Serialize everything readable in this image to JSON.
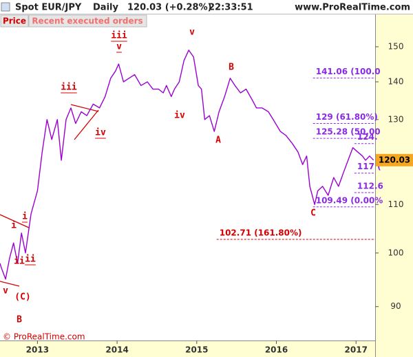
{
  "header": {
    "symbol": "Spot EUR/JPY",
    "period": "Daily",
    "quote": "120.03 (+0.28%)",
    "time": "22:33:51",
    "site": "www.ProRealTime.com",
    "price_button": "Price",
    "orders_button": "Recent executed orders",
    "copyright": "© ProRealTime.com"
  },
  "chart_data": {
    "type": "line",
    "log_scale": true,
    "grid": false,
    "xlim": [
      2012.53,
      2017.24
    ],
    "xticks": [
      2013,
      2014,
      2015,
      2016,
      2017
    ],
    "ylim": [
      84.2,
      160.05
    ],
    "yticks": [
      90,
      100,
      110,
      130,
      140,
      150
    ],
    "last_price": {
      "value": 120.03,
      "label": "120.03"
    },
    "series": [
      {
        "color": "#9a00d0",
        "x": [
          2012.53,
          2012.55,
          2012.6,
          2012.65,
          2012.7,
          2012.75,
          2012.8,
          2012.85,
          2012.92,
          2013,
          2013.06,
          2013.12,
          2013.18,
          2013.25,
          2013.3,
          2013.36,
          2013.42,
          2013.48,
          2013.55,
          2013.62,
          2013.7,
          2013.78,
          2013.85,
          2013.92,
          2013.98,
          2014.02,
          2014.08,
          2014.15,
          2014.22,
          2014.3,
          2014.38,
          2014.45,
          2014.52,
          2014.58,
          2014.62,
          2014.68,
          2014.72,
          2014.78,
          2014.84,
          2014.9,
          2014.96,
          2015.02,
          2015.06,
          2015.1,
          2015.16,
          2015.22,
          2015.28,
          2015.35,
          2015.42,
          2015.48,
          2015.55,
          2015.62,
          2015.7,
          2015.75,
          2015.82,
          2015.9,
          2015.96,
          2016.05,
          2016.12,
          2016.2,
          2016.27,
          2016.33,
          2016.38,
          2016.42,
          2016.48,
          2016.52,
          2016.58,
          2016.65,
          2016.72,
          2016.78,
          2016.84,
          2016.9,
          2016.96,
          2017.02,
          2017.08,
          2017.12,
          2017.17,
          2017.22
        ],
        "values": [
          98,
          97,
          95,
          99,
          102,
          98,
          104,
          100,
          108,
          113,
          122,
          130,
          125,
          130,
          120,
          130,
          133,
          129,
          132,
          131,
          134,
          133,
          136,
          141,
          143,
          145,
          140,
          141,
          142,
          139,
          140,
          138,
          138,
          137,
          139,
          136,
          138,
          140,
          146,
          149,
          147,
          139,
          138,
          130,
          131,
          127,
          132,
          136,
          141,
          139,
          137,
          138,
          135,
          133,
          133,
          132,
          130,
          127,
          126,
          124,
          122,
          119,
          121,
          114,
          110,
          113,
          114,
          112,
          116,
          114,
          117,
          120,
          123,
          122,
          121,
          120,
          121,
          120.03
        ]
      }
    ],
    "fib_levels": [
      {
        "value": 141.06,
        "label": "141.06 (100.0",
        "color": "#8a2be2",
        "start": 2016.46
      },
      {
        "value": 129,
        "label": "129 (61.80%)",
        "color": "#8a2be2",
        "start": 2016.46
      },
      {
        "value": 125.28,
        "label": "125.28 (50.00",
        "color": "#8a2be2",
        "start": 2016.46
      },
      {
        "value": 124,
        "label": "124.",
        "color": "#8a2be2",
        "start": 2016.98
      },
      {
        "value": 117,
        "label": "117 (",
        "color": "#8a2be2",
        "start": 2016.98
      },
      {
        "value": 112.6,
        "label": "112.6",
        "color": "#8a2be2",
        "start": 2016.98
      },
      {
        "value": 109.49,
        "label": "109.49 (0.00%",
        "color": "#8a2be2",
        "start": 2016.46
      },
      {
        "value": 102.71,
        "label": "102.71 (161.80%)",
        "color": "#d40000",
        "start": 2015.25
      }
    ],
    "annotations": [
      "v",
      "(C)",
      "B",
      "i",
      "ii",
      "i",
      "ii",
      "iii",
      "iv",
      "iii",
      "v",
      "v",
      "iv",
      "B",
      "A",
      "C"
    ]
  }
}
